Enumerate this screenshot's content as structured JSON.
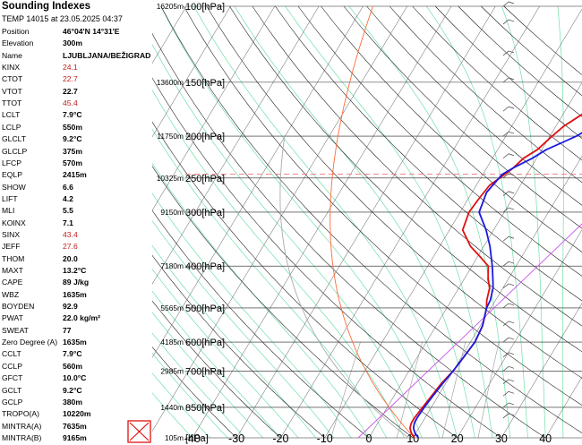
{
  "sidebar": {
    "title": "Sounding Indexes",
    "subtitle": "TEMP 14015 at 23.05.2025 04:37",
    "rows": [
      {
        "k": "Position",
        "v": "46°04'N 14°31'E"
      },
      {
        "k": "Elevation",
        "v": "300m"
      },
      {
        "k": "Name",
        "v": "LJUBLJANA/BEŽIGRAD"
      },
      {
        "k": "KINX",
        "v": "24.1",
        "red": true
      },
      {
        "k": "CTOT",
        "v": "22.7",
        "red": true
      },
      {
        "k": "VTOT",
        "v": "22.7"
      },
      {
        "k": "TTOT",
        "v": "45.4",
        "red": true
      },
      {
        "k": "LCLT",
        "v": "7.9°C"
      },
      {
        "k": "LCLP",
        "v": "550m"
      },
      {
        "k": "GLCLT",
        "v": "9.2°C"
      },
      {
        "k": "GLCLP",
        "v": "375m"
      },
      {
        "k": "LFCP",
        "v": "570m"
      },
      {
        "k": "EQLP",
        "v": "2415m"
      },
      {
        "k": "SHOW",
        "v": "6.6"
      },
      {
        "k": "LIFT",
        "v": "4.2"
      },
      {
        "k": "MLI",
        "v": "5.5"
      },
      {
        "k": "KOINX",
        "v": "7.1"
      },
      {
        "k": "SINX",
        "v": "43.4",
        "red": true
      },
      {
        "k": "JEFF",
        "v": "27.6",
        "red": true
      },
      {
        "k": "THOM",
        "v": "20.0"
      },
      {
        "k": "MAXT",
        "v": "13.2°C"
      },
      {
        "k": "CAPE",
        "v": "89 J/kg"
      },
      {
        "k": "WBZ",
        "v": "1635m"
      },
      {
        "k": "BOYDEN",
        "v": "92.9"
      },
      {
        "k": "PWAT",
        "v": "22.0 kg/m²"
      },
      {
        "k": "SWEAT",
        "v": "77"
      },
      {
        "k": "Zero Degree (A)",
        "v": "1635m"
      },
      {
        "k": "CCLT",
        "v": "7.9°C"
      },
      {
        "k": "CCLP",
        "v": "560m"
      },
      {
        "k": "GFCT",
        "v": "10.0°C"
      },
      {
        "k": "GCLT",
        "v": "9.2°C"
      },
      {
        "k": "GCLP",
        "v": "380m"
      },
      {
        "k": "TROPO(A)",
        "v": "10220m"
      },
      {
        "k": "MINTRA(A)",
        "v": "7635m"
      },
      {
        "k": "MINTRA(B)",
        "v": "9165m"
      }
    ]
  },
  "chart_data": {
    "type": "line",
    "pressure_levels": [
      {
        "p": 100,
        "label": "100[hPa]",
        "height": "16205m"
      },
      {
        "p": 150,
        "label": "150[hPa]",
        "height": "13600m"
      },
      {
        "p": 200,
        "label": "200[hPa]",
        "height": "11750m"
      },
      {
        "p": 250,
        "label": "250[hPa]",
        "height": "10325m"
      },
      {
        "p": 300,
        "label": "300[hPa]",
        "height": "9150m"
      },
      {
        "p": 400,
        "label": "400[hPa]",
        "height": "7180m"
      },
      {
        "p": 500,
        "label": "500[hPa]",
        "height": "5565m"
      },
      {
        "p": 600,
        "label": "600[hPa]",
        "height": "4185m"
      },
      {
        "p": 700,
        "label": "700[hPa]",
        "height": "2985m"
      },
      {
        "p": 850,
        "label": "850[hPa]",
        "height": "1440m"
      },
      {
        "p": 1000,
        "label": "[hPa]",
        "height": "105m"
      }
    ],
    "x_ticks": [
      "-40",
      "-30",
      "-20",
      "-10",
      "0",
      "10",
      "20",
      "30",
      "40"
    ],
    "x_tick_values": [
      -40,
      -30,
      -20,
      -10,
      0,
      10,
      20,
      30,
      40
    ],
    "tropopause_p": 245,
    "series": [
      {
        "name": "temperature",
        "color": "#e01010",
        "points": [
          [
            1000,
            10.3
          ],
          [
            975,
            9.0
          ],
          [
            950,
            8.0
          ],
          [
            925,
            7.6
          ],
          [
            900,
            7.6
          ],
          [
            850,
            8.0
          ],
          [
            800,
            8.5
          ],
          [
            750,
            9.0
          ],
          [
            700,
            10.0
          ],
          [
            650,
            10.5
          ],
          [
            600,
            11.0
          ],
          [
            550,
            10.5
          ],
          [
            500,
            9.0
          ],
          [
            480,
            8.0
          ],
          [
            450,
            7.0
          ],
          [
            430,
            5.5
          ],
          [
            400,
            3.7
          ],
          [
            380,
            0.5
          ],
          [
            360,
            -3.0
          ],
          [
            330,
            -7.0
          ],
          [
            300,
            -8.0
          ],
          [
            280,
            -7.6
          ],
          [
            260,
            -7.0
          ],
          [
            245,
            -5.0
          ],
          [
            237,
            -4.0
          ],
          [
            225,
            -3.0
          ],
          [
            215,
            -1.0
          ],
          [
            200,
            0.5
          ],
          [
            190,
            1.7
          ],
          [
            175,
            5.0
          ],
          [
            160,
            7.2
          ],
          [
            150,
            9.4
          ],
          [
            135,
            10.5
          ],
          [
            125,
            10.0
          ],
          [
            110,
            5.2
          ],
          [
            100,
            6.5
          ],
          [
            90,
            8.0
          ]
        ]
      },
      {
        "name": "dewpoint",
        "color": "#1a1ae0",
        "points": [
          [
            1000,
            11.2
          ],
          [
            975,
            9.8
          ],
          [
            950,
            8.8
          ],
          [
            925,
            8.3
          ],
          [
            900,
            8.2
          ],
          [
            850,
            8.4
          ],
          [
            800,
            8.8
          ],
          [
            750,
            9.3
          ],
          [
            700,
            10.0
          ],
          [
            650,
            10.5
          ],
          [
            600,
            11.0
          ],
          [
            550,
            10.5
          ],
          [
            500,
            9.0
          ],
          [
            480,
            8.8
          ],
          [
            450,
            7.8
          ],
          [
            430,
            6.6
          ],
          [
            400,
            4.6
          ],
          [
            360,
            1.4
          ],
          [
            330,
            -1.7
          ],
          [
            300,
            -5.7
          ],
          [
            270,
            -6.7
          ],
          [
            245,
            -5.6
          ],
          [
            237,
            -4.0
          ],
          [
            225,
            -1.0
          ],
          [
            215,
            1.0
          ],
          [
            200,
            6.0
          ],
          [
            175,
            12.1
          ],
          [
            160,
            19.0
          ],
          [
            150,
            25.0
          ],
          [
            135,
            32.0
          ],
          [
            120,
            36.0
          ],
          [
            110,
            40.0
          ],
          [
            100,
            45.0
          ],
          [
            90,
            47.0
          ]
        ]
      }
    ]
  }
}
